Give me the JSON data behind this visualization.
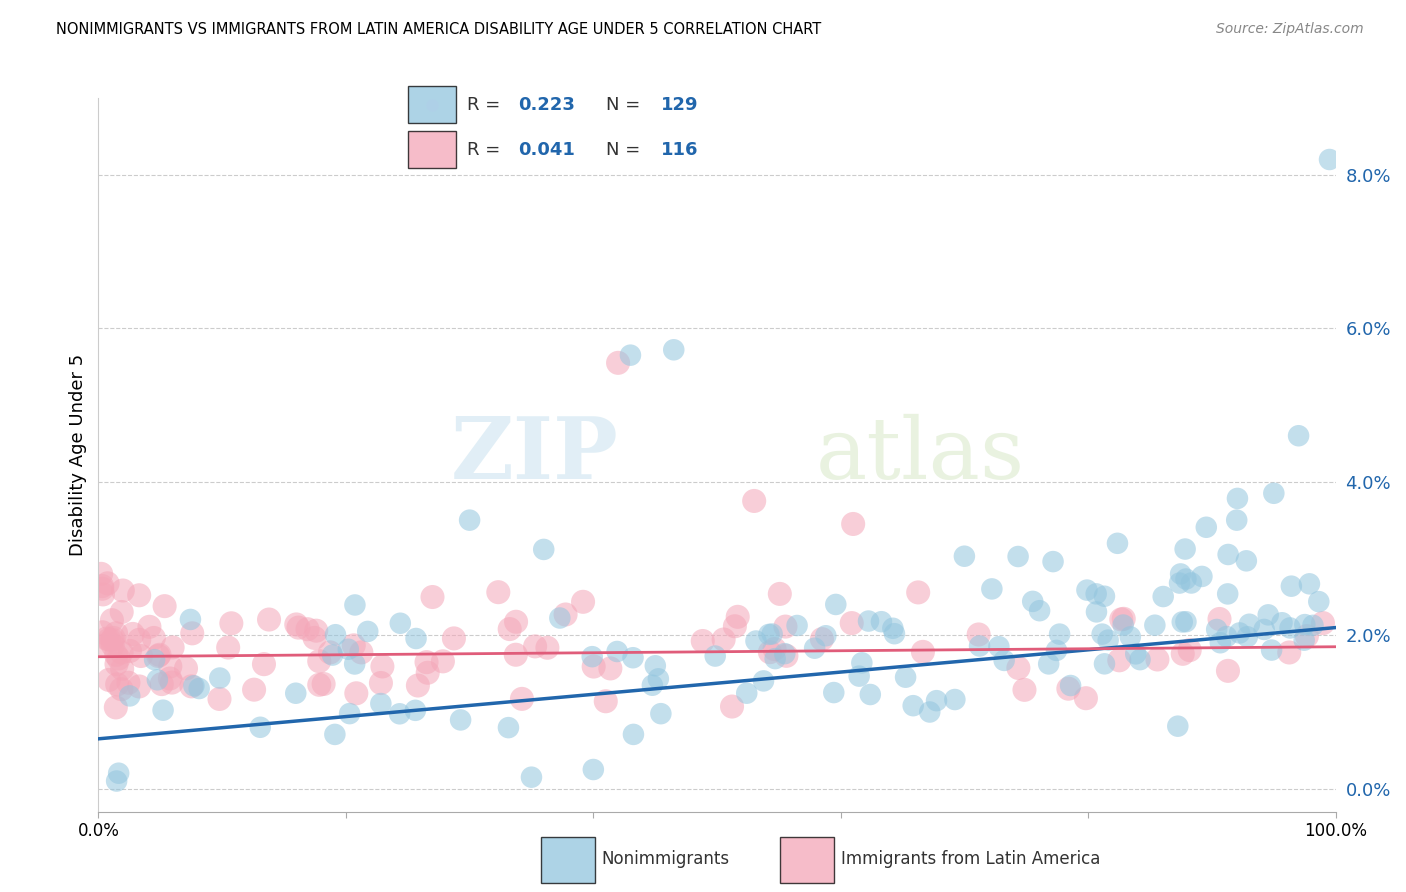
{
  "title": "NONIMMIGRANTS VS IMMIGRANTS FROM LATIN AMERICA DISABILITY AGE UNDER 5 CORRELATION CHART",
  "source": "Source: ZipAtlas.com",
  "ylabel": "Disability Age Under 5",
  "ytick_vals": [
    0.0,
    2.0,
    4.0,
    6.0,
    8.0
  ],
  "xlim": [
    0.0,
    100.0
  ],
  "ylim": [
    -0.3,
    9.0
  ],
  "blue_color": "#92c5de",
  "pink_color": "#f4a6b8",
  "blue_line_color": "#2166ac",
  "pink_line_color": "#e05c7a",
  "legend_blue_R": "0.223",
  "legend_blue_N": "129",
  "legend_pink_R": "0.041",
  "legend_pink_N": "116",
  "watermark_zip": "ZIP",
  "watermark_atlas": "atlas",
  "blue_trend": [
    0.0,
    100.0,
    0.65,
    2.1
  ],
  "pink_trend": [
    0.0,
    100.0,
    1.72,
    1.85
  ]
}
